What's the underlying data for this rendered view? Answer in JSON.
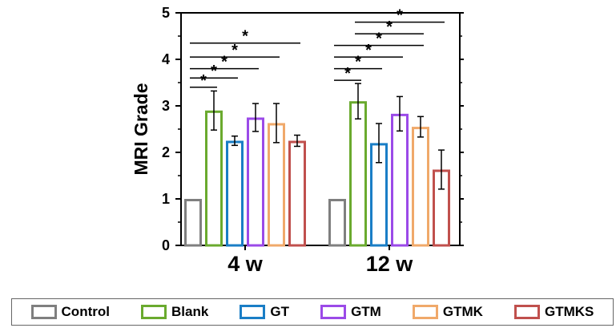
{
  "chart_data": {
    "type": "bar",
    "title": "",
    "xlabel": "",
    "ylabel": "MRI Grade",
    "ylim": [
      0,
      5
    ],
    "yticks": [
      "0",
      "1",
      "2",
      "3",
      "4",
      "5"
    ],
    "categories": [
      "4 w",
      "12 w"
    ],
    "series": [
      {
        "name": "Control",
        "color": "#7f7f7f",
        "values": [
          1.0,
          1.0
        ],
        "errors": [
          0,
          0
        ]
      },
      {
        "name": "Blank",
        "color": "#6aaa2e",
        "values": [
          2.9,
          3.1
        ],
        "errors": [
          0.42,
          0.38
        ]
      },
      {
        "name": "GT",
        "color": "#1a7ec6",
        "values": [
          2.25,
          2.2
        ],
        "errors": [
          0.1,
          0.42
        ]
      },
      {
        "name": "GTM",
        "color": "#9b4ae8",
        "values": [
          2.75,
          2.83
        ],
        "errors": [
          0.3,
          0.37
        ]
      },
      {
        "name": "GTMK",
        "color": "#f0a96a",
        "values": [
          2.63,
          2.55
        ],
        "errors": [
          0.42,
          0.22
        ]
      },
      {
        "name": "GTMKS",
        "color": "#c0504d",
        "values": [
          2.25,
          1.63
        ],
        "errors": [
          0.12,
          0.42
        ]
      }
    ],
    "significance": {
      "symbol": "*",
      "groups": [
        {
          "category": "4 w",
          "comparisons": [
            {
              "from": "Control",
              "to": "Blank",
              "y": 3.4
            },
            {
              "from": "Control",
              "to": "GT",
              "y": 3.6
            },
            {
              "from": "Control",
              "to": "GTM",
              "y": 3.8
            },
            {
              "from": "Control",
              "to": "GTMK",
              "y": 4.05
            },
            {
              "from": "Control",
              "to": "GTMKS",
              "y": 4.35
            }
          ]
        },
        {
          "category": "12 w",
          "comparisons": [
            {
              "from": "Control",
              "to": "Blank",
              "y": 3.55
            },
            {
              "from": "Control",
              "to": "GT",
              "y": 3.8
            },
            {
              "from": "Control",
              "to": "GTM",
              "y": 4.05
            },
            {
              "from": "Control",
              "to": "GTMK",
              "y": 4.3
            },
            {
              "from": "Blank",
              "to": "GTMK",
              "y": 4.55
            },
            {
              "from": "Blank",
              "to": "GTMKS",
              "y": 4.8
            }
          ]
        }
      ]
    },
    "legend_position": "bottom"
  },
  "legend": {
    "items": [
      {
        "label": "Control",
        "color": "#7f7f7f"
      },
      {
        "label": "Blank",
        "color": "#6aaa2e"
      },
      {
        "label": "GT",
        "color": "#1a7ec6"
      },
      {
        "label": "GTM",
        "color": "#9b4ae8"
      },
      {
        "label": "GTMK",
        "color": "#f0a96a"
      },
      {
        "label": "GTMKS",
        "color": "#c0504d"
      }
    ]
  }
}
